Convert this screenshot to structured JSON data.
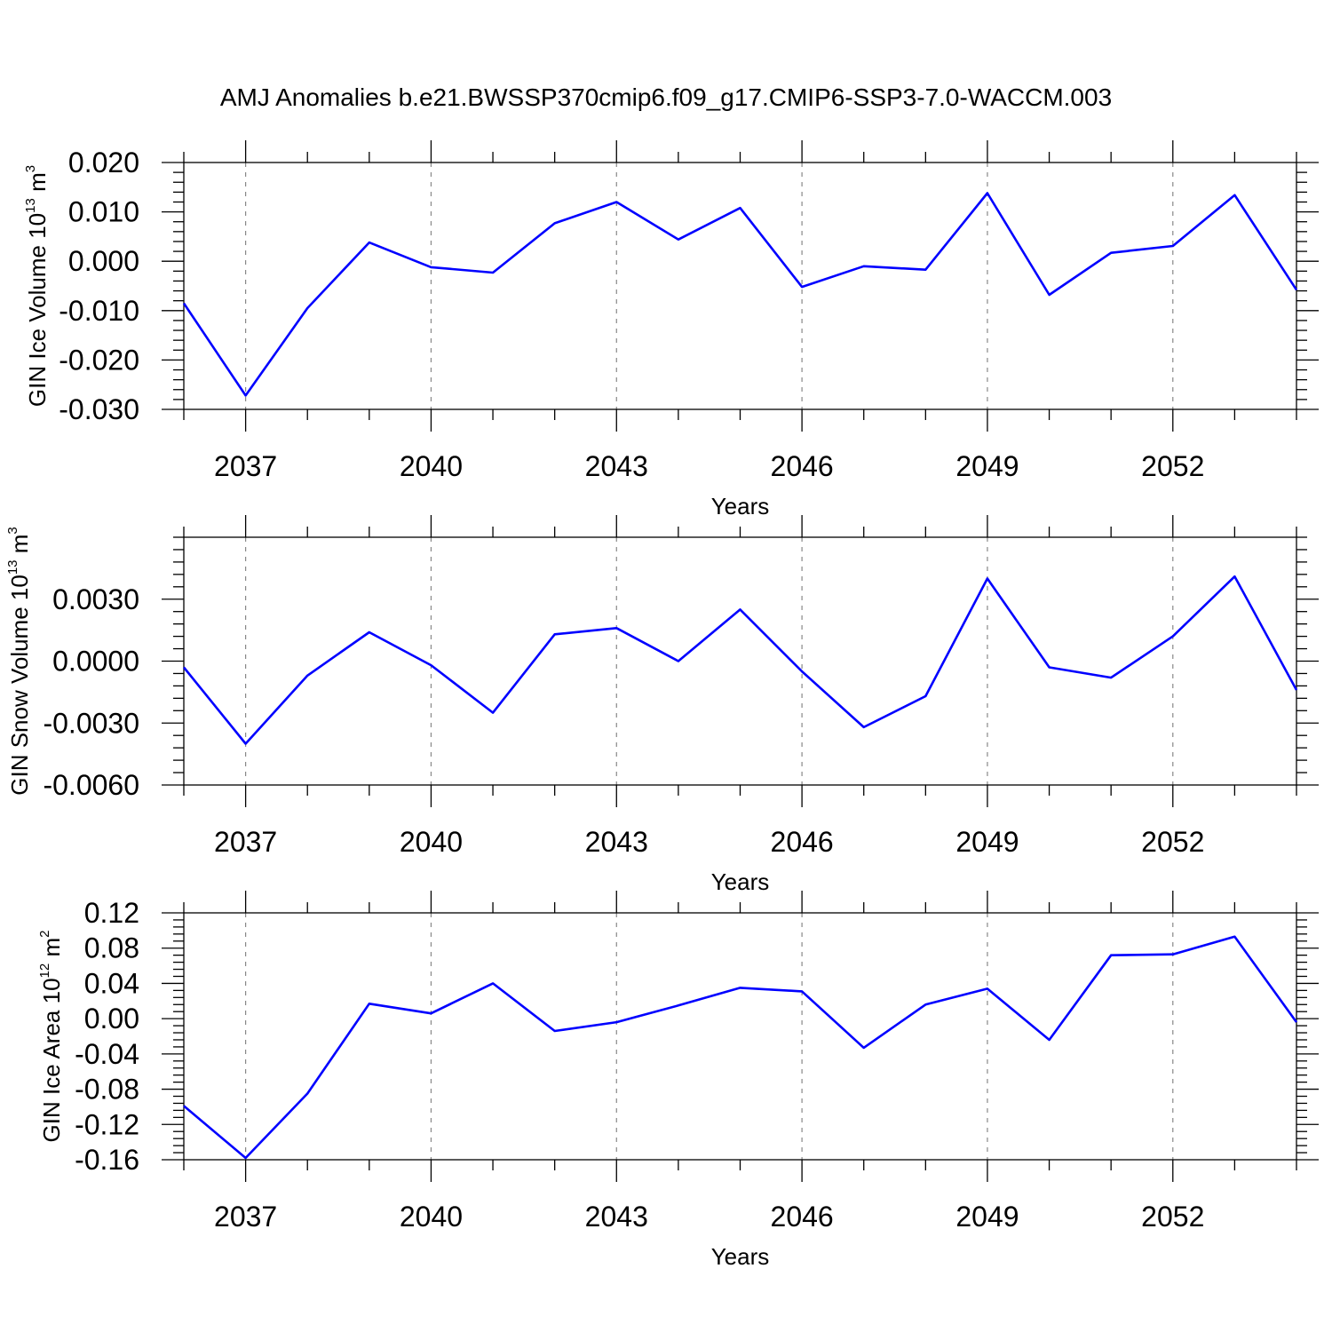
{
  "title": "AMJ Anomalies b.e21.BWSSP370cmip6.f09_g17.CMIP6-SSP3-7.0-WACCM.003",
  "colors": {
    "line": "#0000ff",
    "grid": "#888888"
  },
  "chart_data": [
    {
      "type": "line",
      "ylabel_main": "GIN Ice Volume 10",
      "ylabel_exp": "13",
      "ylabel_unit": " m",
      "ylabel_unit_exp": "3",
      "xlabel": "Years",
      "xlim": [
        2036,
        2054
      ],
      "ylim": [
        -0.03,
        0.02
      ],
      "yticks": [
        -0.03,
        -0.02,
        -0.01,
        0.0,
        0.01,
        0.02
      ],
      "ytick_labels": [
        "-0.030",
        "-0.020",
        "-0.010",
        "0.000",
        "0.010",
        "0.020"
      ],
      "xticks": [
        2037,
        2040,
        2043,
        2046,
        2049,
        2052
      ],
      "xtick_labels": [
        "2037",
        "2040",
        "2043",
        "2046",
        "2049",
        "2052"
      ],
      "x": [
        2036,
        2037,
        2038,
        2039,
        2040,
        2041,
        2042,
        2043,
        2044,
        2045,
        2046,
        2047,
        2048,
        2049,
        2050,
        2051,
        2052,
        2053,
        2054
      ],
      "values": [
        -0.0085,
        -0.0272,
        -0.0095,
        0.0038,
        -0.0012,
        -0.0023,
        0.0077,
        0.012,
        0.0044,
        0.0108,
        -0.0052,
        -0.001,
        -0.0017,
        0.0138,
        -0.0068,
        0.0017,
        0.0031,
        0.0134,
        -0.0058
      ]
    },
    {
      "type": "line",
      "ylabel_main": "GIN Snow Volume 10",
      "ylabel_exp": "13",
      "ylabel_unit": " m",
      "ylabel_unit_exp": "3",
      "xlabel": "Years",
      "xlim": [
        2036,
        2054
      ],
      "ylim": [
        -0.006,
        0.006
      ],
      "yticks": [
        -0.006,
        -0.003,
        0.0,
        0.003
      ],
      "ytick_labels": [
        "-0.0060",
        "-0.0030",
        "0.0000",
        "0.0030"
      ],
      "xticks": [
        2037,
        2040,
        2043,
        2046,
        2049,
        2052
      ],
      "xtick_labels": [
        "2037",
        "2040",
        "2043",
        "2046",
        "2049",
        "2052"
      ],
      "x": [
        2036,
        2037,
        2038,
        2039,
        2040,
        2041,
        2042,
        2043,
        2044,
        2045,
        2046,
        2047,
        2048,
        2049,
        2050,
        2051,
        2052,
        2053,
        2054
      ],
      "values": [
        -0.0003,
        -0.004,
        -0.0007,
        0.0014,
        -0.0002,
        -0.0025,
        0.0013,
        0.0016,
        0.0,
        0.0025,
        -0.0005,
        -0.0032,
        -0.0017,
        0.004,
        -0.0003,
        -0.0008,
        0.0012,
        0.0041,
        -0.0014
      ]
    },
    {
      "type": "line",
      "ylabel_main": "GIN Ice Area 10",
      "ylabel_exp": "12",
      "ylabel_unit": " m",
      "ylabel_unit_exp": "2",
      "xlabel": "Years",
      "xlim": [
        2036,
        2054
      ],
      "ylim": [
        -0.16,
        0.12
      ],
      "yticks": [
        -0.16,
        -0.12,
        -0.08,
        -0.04,
        0.0,
        0.04,
        0.08,
        0.12
      ],
      "ytick_labels": [
        "-0.16",
        "-0.12",
        "-0.08",
        "-0.04",
        "0.00",
        "0.04",
        "0.08",
        "0.12"
      ],
      "xticks": [
        2037,
        2040,
        2043,
        2046,
        2049,
        2052
      ],
      "xtick_labels": [
        "2037",
        "2040",
        "2043",
        "2046",
        "2049",
        "2052"
      ],
      "x": [
        2036,
        2037,
        2038,
        2039,
        2040,
        2041,
        2042,
        2043,
        2044,
        2045,
        2046,
        2047,
        2048,
        2049,
        2050,
        2051,
        2052,
        2053,
        2054
      ],
      "values": [
        -0.099,
        -0.158,
        -0.085,
        0.017,
        0.006,
        0.04,
        -0.014,
        -0.004,
        0.015,
        0.035,
        0.031,
        -0.033,
        0.016,
        0.034,
        -0.024,
        0.072,
        0.073,
        0.093,
        -0.004
      ]
    }
  ]
}
